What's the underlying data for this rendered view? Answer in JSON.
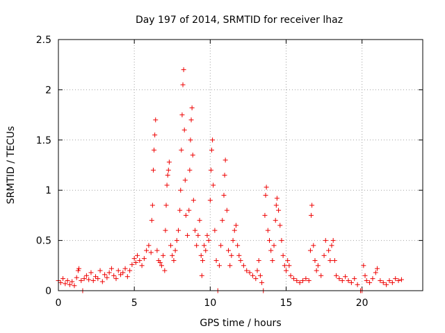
{
  "chart_data": {
    "type": "scatter",
    "title": "Day 197 of 2014, SRMTID for receiver lhaz",
    "xlabel": "GPS time / hours",
    "ylabel": "SRMTID / TECUs",
    "xlim": [
      0,
      24
    ],
    "ylim": [
      0,
      2.5
    ],
    "x_ticks": [
      0,
      5,
      10,
      15,
      20
    ],
    "x_tick_labels": [
      "0",
      "5",
      "10",
      "15",
      "20"
    ],
    "y_ticks": [
      0,
      0.5,
      1,
      1.5,
      2,
      2.5
    ],
    "y_tick_labels": [
      "0",
      "0.5",
      "1",
      "1.5",
      "2",
      "2.5"
    ],
    "grid": true,
    "marker": "plus",
    "color": "#ee0000",
    "series": [
      {
        "name": "SRMTID",
        "points": [
          [
            0.0,
            0.1
          ],
          [
            0.15,
            0.08
          ],
          [
            0.3,
            0.12
          ],
          [
            0.45,
            0.07
          ],
          [
            0.6,
            0.1
          ],
          [
            0.75,
            0.06
          ],
          [
            0.9,
            0.09
          ],
          [
            1.05,
            0.05
          ],
          [
            1.2,
            0.13
          ],
          [
            1.3,
            0.2
          ],
          [
            1.35,
            0.22
          ],
          [
            1.5,
            0.1
          ],
          [
            1.6,
            0.0
          ],
          [
            1.7,
            0.12
          ],
          [
            1.85,
            0.15
          ],
          [
            2.0,
            0.11
          ],
          [
            2.15,
            0.18
          ],
          [
            2.3,
            0.1
          ],
          [
            2.45,
            0.14
          ],
          [
            2.6,
            0.12
          ],
          [
            2.75,
            0.2
          ],
          [
            2.9,
            0.09
          ],
          [
            3.05,
            0.16
          ],
          [
            3.2,
            0.13
          ],
          [
            3.35,
            0.18
          ],
          [
            3.5,
            0.22
          ],
          [
            3.65,
            0.15
          ],
          [
            3.8,
            0.12
          ],
          [
            3.95,
            0.2
          ],
          [
            4.1,
            0.16
          ],
          [
            4.25,
            0.18
          ],
          [
            4.4,
            0.22
          ],
          [
            4.55,
            0.14
          ],
          [
            4.7,
            0.2
          ],
          [
            4.85,
            0.26
          ],
          [
            5.0,
            0.32
          ],
          [
            5.1,
            0.28
          ],
          [
            5.2,
            0.35
          ],
          [
            5.35,
            0.3
          ],
          [
            5.5,
            0.25
          ],
          [
            5.65,
            0.32
          ],
          [
            5.8,
            0.4
          ],
          [
            5.95,
            0.45
          ],
          [
            6.1,
            0.38
          ],
          [
            6.15,
            0.7
          ],
          [
            6.2,
            0.85
          ],
          [
            6.25,
            1.2
          ],
          [
            6.3,
            1.4
          ],
          [
            6.35,
            1.55
          ],
          [
            6.4,
            1.7
          ],
          [
            6.5,
            0.4
          ],
          [
            6.6,
            0.3
          ],
          [
            6.7,
            0.28
          ],
          [
            6.8,
            0.25
          ],
          [
            6.9,
            0.35
          ],
          [
            7.0,
            0.2
          ],
          [
            7.05,
            0.6
          ],
          [
            7.1,
            0.85
          ],
          [
            7.15,
            1.05
          ],
          [
            7.2,
            1.15
          ],
          [
            7.25,
            1.2
          ],
          [
            7.3,
            1.28
          ],
          [
            7.4,
            0.45
          ],
          [
            7.5,
            0.35
          ],
          [
            7.6,
            0.3
          ],
          [
            7.7,
            0.4
          ],
          [
            7.8,
            0.5
          ],
          [
            7.9,
            0.6
          ],
          [
            8.0,
            0.8
          ],
          [
            8.05,
            1.0
          ],
          [
            8.1,
            1.4
          ],
          [
            8.15,
            1.75
          ],
          [
            8.2,
            2.05
          ],
          [
            8.25,
            2.2
          ],
          [
            8.3,
            1.6
          ],
          [
            8.35,
            1.1
          ],
          [
            8.4,
            0.75
          ],
          [
            8.5,
            0.55
          ],
          [
            8.6,
            0.8
          ],
          [
            8.65,
            1.2
          ],
          [
            8.7,
            1.5
          ],
          [
            8.75,
            1.7
          ],
          [
            8.8,
            1.82
          ],
          [
            8.85,
            1.35
          ],
          [
            8.9,
            0.9
          ],
          [
            9.0,
            0.6
          ],
          [
            9.1,
            0.45
          ],
          [
            9.2,
            0.55
          ],
          [
            9.3,
            0.7
          ],
          [
            9.4,
            0.35
          ],
          [
            9.45,
            0.15
          ],
          [
            9.5,
            0.3
          ],
          [
            9.6,
            0.45
          ],
          [
            9.7,
            0.4
          ],
          [
            9.8,
            0.55
          ],
          [
            9.9,
            0.5
          ],
          [
            10.0,
            0.9
          ],
          [
            10.05,
            1.2
          ],
          [
            10.1,
            1.4
          ],
          [
            10.15,
            1.5
          ],
          [
            10.2,
            1.05
          ],
          [
            10.3,
            0.6
          ],
          [
            10.4,
            0.3
          ],
          [
            10.5,
            0.0
          ],
          [
            10.6,
            0.25
          ],
          [
            10.7,
            0.45
          ],
          [
            10.8,
            0.7
          ],
          [
            10.9,
            0.95
          ],
          [
            10.95,
            1.15
          ],
          [
            11.0,
            1.3
          ],
          [
            11.1,
            0.8
          ],
          [
            11.2,
            0.4
          ],
          [
            11.3,
            0.25
          ],
          [
            11.4,
            0.35
          ],
          [
            11.5,
            0.5
          ],
          [
            11.6,
            0.6
          ],
          [
            11.7,
            0.65
          ],
          [
            11.8,
            0.45
          ],
          [
            11.9,
            0.35
          ],
          [
            12.0,
            0.3
          ],
          [
            12.2,
            0.25
          ],
          [
            12.4,
            0.2
          ],
          [
            12.6,
            0.18
          ],
          [
            12.8,
            0.15
          ],
          [
            13.0,
            0.12
          ],
          [
            13.1,
            0.2
          ],
          [
            13.2,
            0.3
          ],
          [
            13.3,
            0.15
          ],
          [
            13.4,
            0.08
          ],
          [
            13.5,
            0.0
          ],
          [
            13.6,
            0.75
          ],
          [
            13.65,
            0.95
          ],
          [
            13.7,
            1.03
          ],
          [
            13.8,
            0.6
          ],
          [
            13.9,
            0.5
          ],
          [
            14.0,
            0.4
          ],
          [
            14.1,
            0.3
          ],
          [
            14.2,
            0.45
          ],
          [
            14.3,
            0.7
          ],
          [
            14.35,
            0.85
          ],
          [
            14.4,
            0.92
          ],
          [
            14.5,
            0.8
          ],
          [
            14.6,
            0.65
          ],
          [
            14.7,
            0.5
          ],
          [
            14.8,
            0.35
          ],
          [
            14.9,
            0.25
          ],
          [
            15.0,
            0.2
          ],
          [
            15.1,
            0.3
          ],
          [
            15.2,
            0.25
          ],
          [
            15.3,
            0.15
          ],
          [
            15.5,
            0.12
          ],
          [
            15.7,
            0.1
          ],
          [
            15.9,
            0.08
          ],
          [
            16.1,
            0.1
          ],
          [
            16.3,
            0.12
          ],
          [
            16.5,
            0.1
          ],
          [
            16.6,
            0.4
          ],
          [
            16.65,
            0.75
          ],
          [
            16.7,
            0.85
          ],
          [
            16.8,
            0.45
          ],
          [
            16.9,
            0.3
          ],
          [
            17.0,
            0.2
          ],
          [
            17.1,
            0.25
          ],
          [
            17.3,
            0.15
          ],
          [
            17.5,
            0.35
          ],
          [
            17.6,
            0.5
          ],
          [
            17.8,
            0.4
          ],
          [
            17.9,
            0.3
          ],
          [
            18.0,
            0.45
          ],
          [
            18.1,
            0.5
          ],
          [
            18.2,
            0.3
          ],
          [
            18.3,
            0.15
          ],
          [
            18.5,
            0.12
          ],
          [
            18.7,
            0.1
          ],
          [
            18.9,
            0.14
          ],
          [
            19.1,
            0.1
          ],
          [
            19.3,
            0.08
          ],
          [
            19.5,
            0.12
          ],
          [
            19.7,
            0.06
          ],
          [
            19.9,
            0.0
          ],
          [
            20.0,
            0.0
          ],
          [
            20.1,
            0.25
          ],
          [
            20.2,
            0.15
          ],
          [
            20.3,
            0.1
          ],
          [
            20.5,
            0.08
          ],
          [
            20.7,
            0.12
          ],
          [
            20.9,
            0.18
          ],
          [
            21.0,
            0.22
          ],
          [
            21.2,
            0.1
          ],
          [
            21.4,
            0.08
          ],
          [
            21.6,
            0.06
          ],
          [
            21.8,
            0.1
          ],
          [
            22.0,
            0.08
          ],
          [
            22.2,
            0.12
          ],
          [
            22.4,
            0.1
          ],
          [
            22.6,
            0.11
          ]
        ]
      }
    ]
  }
}
